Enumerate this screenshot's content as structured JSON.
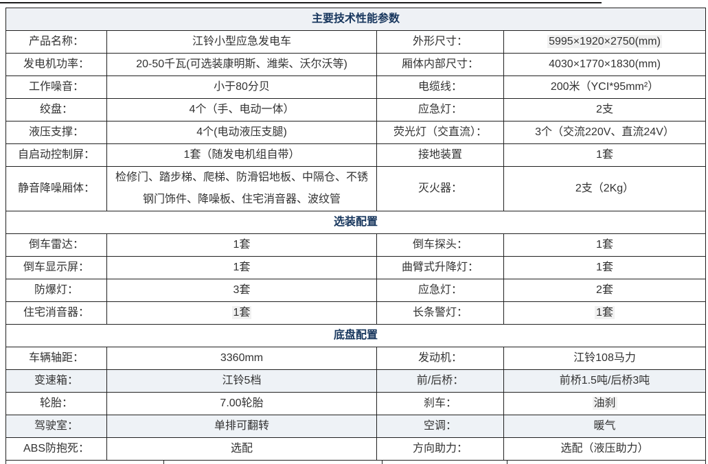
{
  "colors": {
    "accent_navy": "#17365d",
    "border": "#1f1f1f",
    "section_title_bg": "#eef1f5",
    "stripe_bg": "#eef2f6",
    "highlight_bg": "#f1f1f1"
  },
  "table": {
    "title": "主要技术性能参数",
    "sections": [
      {
        "header": "",
        "striped": false,
        "rows": [
          [
            {
              "text": "产品名称："
            },
            {
              "text": "江铃小型应急发电车"
            },
            {
              "text": "外形尺寸："
            },
            {
              "text": "5995×1920×2750(mm)",
              "highlight": true
            }
          ],
          [
            {
              "text": "发电机功率："
            },
            {
              "text": "20-50千瓦(可选装康明斯、潍柴、沃尔沃等)"
            },
            {
              "text": "厢体内部尺寸："
            },
            {
              "text": "4030×1770×1830(mm)"
            }
          ],
          [
            {
              "text": "工作噪音："
            },
            {
              "text": "小于80分贝"
            },
            {
              "text": "电缆线："
            },
            {
              "text": "200米（YCI*95mm²）"
            }
          ],
          [
            {
              "text": "绞盘："
            },
            {
              "text": "4个（手、电动一体）"
            },
            {
              "text": "应急灯："
            },
            {
              "text": "2支"
            }
          ],
          [
            {
              "text": "液压支撑："
            },
            {
              "text": "4个(电动液压支腿)"
            },
            {
              "text": "荧光灯（交直流）："
            },
            {
              "text": "3个（交流220V、直流24V）"
            }
          ],
          [
            {
              "text": "自启动控制屏："
            },
            {
              "text": "1套（随发电机组自带）"
            },
            {
              "text": "接地装置"
            },
            {
              "text": "1套"
            }
          ],
          [
            {
              "text": "静音降噪厢体："
            },
            {
              "text": "检修门、踏步梯、爬梯、防滑铝地板、中隔仓、不锈钢门饰件、降噪板、住宅消音器、波纹管"
            },
            {
              "text": "灭火器："
            },
            {
              "text": "2支（2Kg）"
            }
          ]
        ]
      },
      {
        "header": "选装配置",
        "striped": false,
        "rows": [
          [
            {
              "text": "倒车雷达："
            },
            {
              "text": "1套"
            },
            {
              "text": "倒车探头："
            },
            {
              "text": "1套"
            }
          ],
          [
            {
              "text": "倒车显示屏："
            },
            {
              "text": "1套"
            },
            {
              "text": "曲臂式升降灯："
            },
            {
              "text": "1套"
            }
          ],
          [
            {
              "text": "防爆灯："
            },
            {
              "text": "3套"
            },
            {
              "text": "应急灯："
            },
            {
              "text": "2套"
            }
          ],
          [
            {
              "text": "住宅消音器："
            },
            {
              "text": "1套",
              "highlight": true
            },
            {
              "text": "长条警灯："
            },
            {
              "text": "1套",
              "highlight": true
            }
          ]
        ]
      },
      {
        "header": "底盘配置",
        "striped": true,
        "rows": [
          [
            {
              "text": "车辆轴距："
            },
            {
              "text": "3360mm"
            },
            {
              "text": "发动机："
            },
            {
              "text": "江铃108马力"
            }
          ],
          [
            {
              "text": "变速箱："
            },
            {
              "text": "江铃5档"
            },
            {
              "text": "前/后桥："
            },
            {
              "text": "前桥1.5吨/后桥3吨"
            }
          ],
          [
            {
              "text": "轮胎："
            },
            {
              "text": "7.00轮胎"
            },
            {
              "text": "刹车："
            },
            {
              "text": "油刹",
              "highlight": true
            }
          ],
          [
            {
              "text": "驾驶室："
            },
            {
              "text": "单排可翻转"
            },
            {
              "text": "空调："
            },
            {
              "text": "暖气"
            }
          ],
          [
            {
              "text": "ABS防抱死："
            },
            {
              "text": "选配"
            },
            {
              "text": "方向助力："
            },
            {
              "text": "选配（液压助力）"
            }
          ]
        ]
      }
    ]
  }
}
